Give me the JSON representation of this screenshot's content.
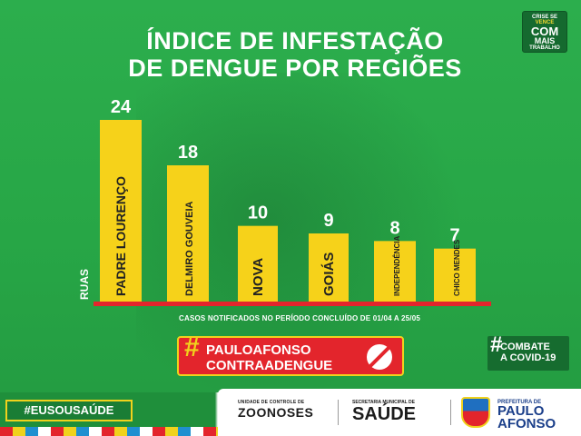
{
  "header": {
    "title_line1": "ÍNDICE DE INFESTAÇÃO",
    "title_line2": "DE DENGUE POR REGIÕES",
    "badge": {
      "line1": "CRISE SE",
      "line2": "VENCE",
      "line3": "COM",
      "line4": "MAIS",
      "line5": "TRABALHO"
    }
  },
  "chart_data": {
    "type": "bar",
    "ylabel": "RUAS",
    "categories": [
      "PADRE LOURENÇO",
      "DELMIRO GOUVEIA",
      "NOVA",
      "GOIÁS",
      "INDEPENDÊNCIA",
      "CHICO MENDES"
    ],
    "values": [
      24,
      18,
      10,
      9,
      8,
      7
    ],
    "ylim": [
      0,
      24
    ],
    "colors": {
      "bar": "#f6d21a",
      "baseline": "#e3252c",
      "label": "#ffffff",
      "category_text": "#222222"
    }
  },
  "footnote": "CASOS NOTIFICADOS NO PERÍODO CONCLUÍDO DE 01/04 A 25/05",
  "campaign": {
    "hash": "#",
    "line1": "PAULOAFONSO",
    "line2": "CONTRAADENGUE",
    "icon": "no-mosquito-icon"
  },
  "covid": {
    "hash": "#",
    "line1": "COMBATE",
    "line2": "A COVID-19"
  },
  "bottom": {
    "eusou": "#EUSOUSAÚDE",
    "zoonoses_small": "UNIDADE DE CONTROLE DE",
    "zoonoses_big": "ZOONOSES",
    "saude_small": "SECRETARIA MUNICIPAL DE",
    "saude_big": "SAÚDE",
    "pref_small": "PREFEITURA DE",
    "pref_big1": "PAULO",
    "pref_big2": "AFONSO"
  }
}
